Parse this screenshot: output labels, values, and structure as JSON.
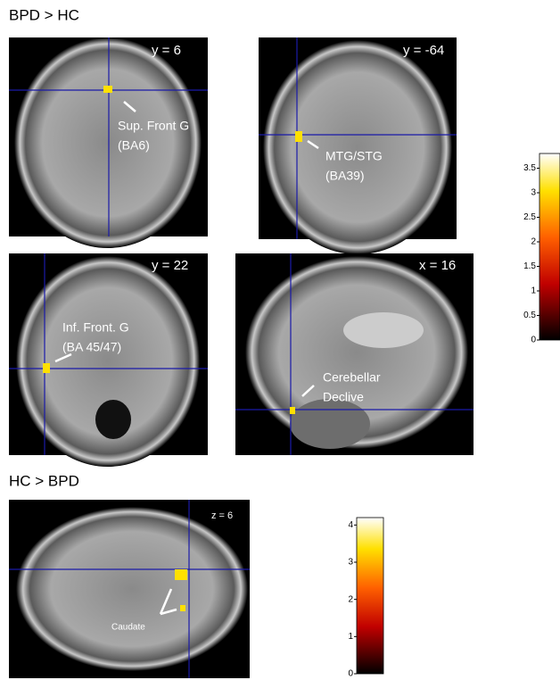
{
  "sections": [
    {
      "title": "BPD > HC",
      "panels": [
        {
          "slice": "y = 6",
          "labels": [
            "Sup. Front G",
            "(BA6)"
          ]
        },
        {
          "slice": "y = -64",
          "labels": [
            "MTG/STG",
            "(BA39)"
          ]
        },
        {
          "slice": "y = 22",
          "labels": [
            "Inf. Front. G",
            "(BA 45/47)"
          ]
        },
        {
          "slice": "x = 16",
          "labels": [
            "Cerebellar",
            "Declive"
          ]
        }
      ],
      "colorbar": {
        "lim": [
          0,
          3.8
        ],
        "ticks": [
          0,
          0.5,
          1,
          1.5,
          2,
          2.5,
          3,
          3.5
        ]
      }
    },
    {
      "title": "HC > BPD",
      "panels": [
        {
          "slice": "z = 6",
          "labels": [
            "Caudate"
          ]
        }
      ],
      "colorbar": {
        "lim": [
          0,
          4.2
        ],
        "ticks": [
          0,
          1,
          2,
          3,
          4
        ]
      }
    }
  ]
}
